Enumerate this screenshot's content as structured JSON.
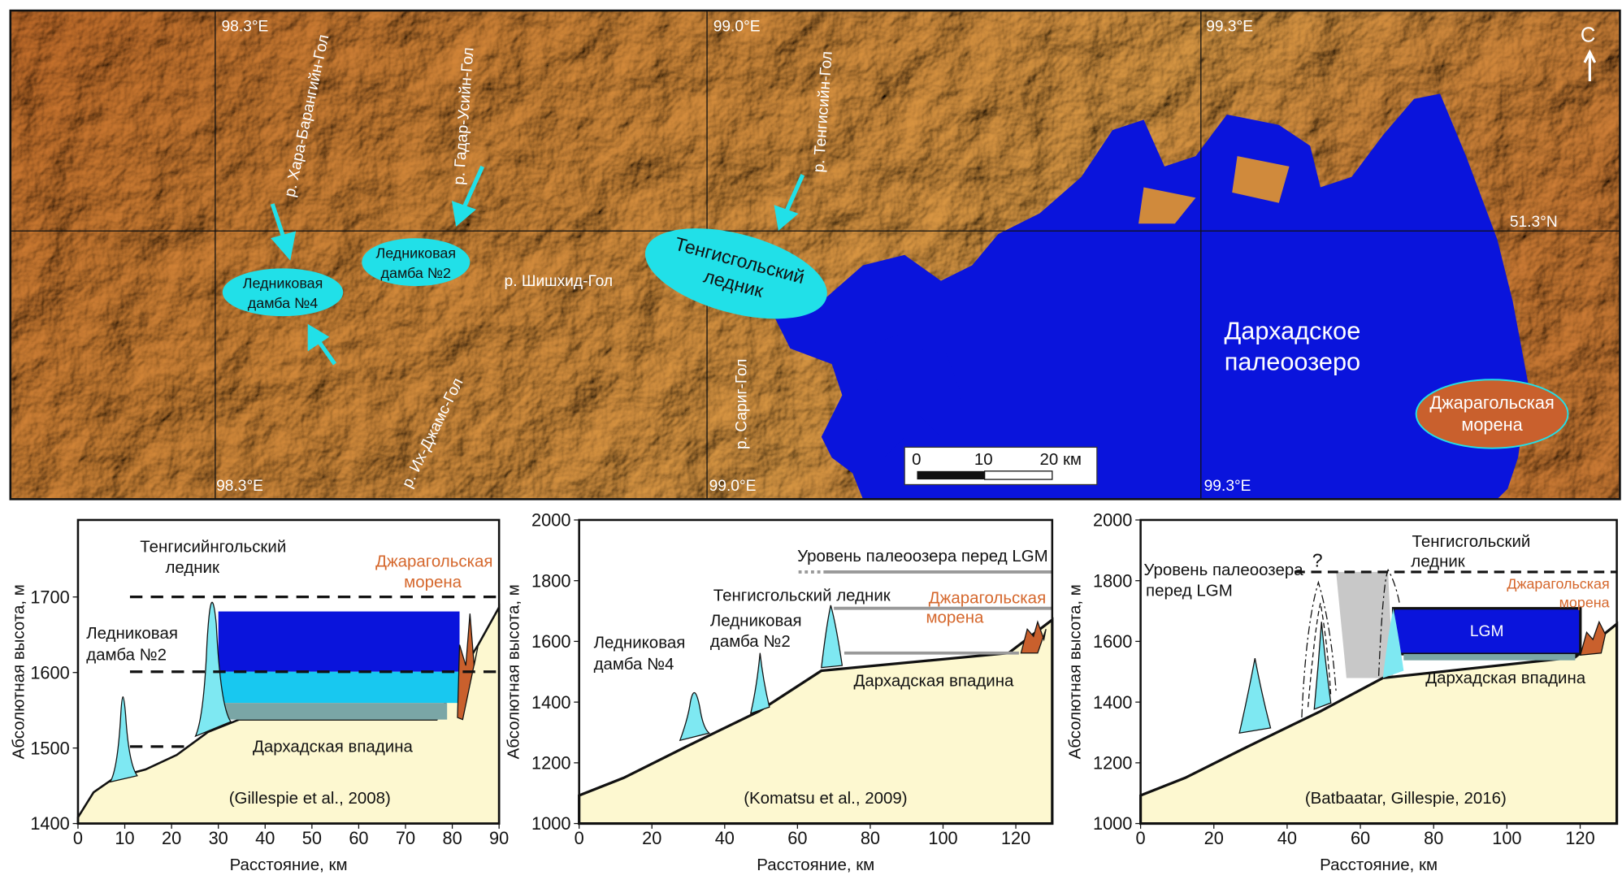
{
  "map": {
    "longitudes": [
      "98.3°E",
      "99.0°E",
      "99.3°E"
    ],
    "latitude": "51.3°N",
    "north": "С",
    "rivers": [
      "р. Хара-Барангийн-Гол",
      "р. Гадар-Усийн-Гол",
      "р. Тенгисийн-Гол",
      "р. Шишхид-Гол",
      "р. Сариг-Гол",
      "р. Их-Джамс-Гол"
    ],
    "dam4": [
      "Ледниковая",
      "дамба №4"
    ],
    "dam2": [
      "Ледниковая",
      "дамба №2"
    ],
    "glacier": [
      "Тенгисгольский",
      "ледник"
    ],
    "lake": [
      "Дархадское",
      "палеоозеро"
    ],
    "moraine": [
      "Джарагольская",
      "морена"
    ],
    "scale_bar": [
      "0",
      "10",
      "20 км"
    ]
  },
  "profiles": [
    {
      "xlabel": "Расстояние, км",
      "ylabel": "Абсолютная высота, м",
      "xlim": [
        0,
        90
      ],
      "xticks": [
        0,
        10,
        20,
        30,
        40,
        50,
        60,
        70,
        80,
        90
      ],
      "ylim": [
        1400,
        1802
      ],
      "yticks": [
        1400,
        1500,
        1600,
        1700
      ],
      "labels": [
        "Тенгисийнгольский",
        "ледник",
        "Ледниковая",
        "дамба №2",
        "Джарагольская",
        "морена",
        "Дархадская впадина"
      ],
      "source": "(Gillespie et al., 2008)"
    },
    {
      "xlabel": "Расстояние, км",
      "ylabel": "Абсолютная высота, м",
      "xlim": [
        0,
        130
      ],
      "xticks": [
        0,
        20,
        40,
        60,
        80,
        100,
        120
      ],
      "ylim": [
        1000,
        2000
      ],
      "yticks": [
        1000,
        1200,
        1400,
        1600,
        1800,
        2000
      ],
      "labels": [
        "Уровень палеоозера перед LGM",
        "Тенгисгольский ледник",
        "Ледниковая",
        "дамба №4",
        "Ледниковая",
        "дамба №2",
        "Джарагольская",
        "морена",
        "Дархадская впадина"
      ],
      "source": "(Komatsu et al., 2009)"
    },
    {
      "xlabel": "Расстояние, км",
      "ylabel": "Абсолютная высота, м",
      "xlim": [
        0,
        130
      ],
      "xticks": [
        0,
        20,
        40,
        60,
        80,
        100,
        120
      ],
      "ylim": [
        1000,
        2000
      ],
      "yticks": [
        1000,
        1200,
        1400,
        1600,
        1800,
        2000
      ],
      "labels": [
        "Тенгисгольский",
        "ледник",
        "Уровень палеоозера",
        "перед LGM",
        "?",
        "LGM",
        "Джарагольская",
        "морена",
        "Дархадская впадина"
      ],
      "source": "(Batbaatar, Gillespie, 2016)"
    }
  ]
}
